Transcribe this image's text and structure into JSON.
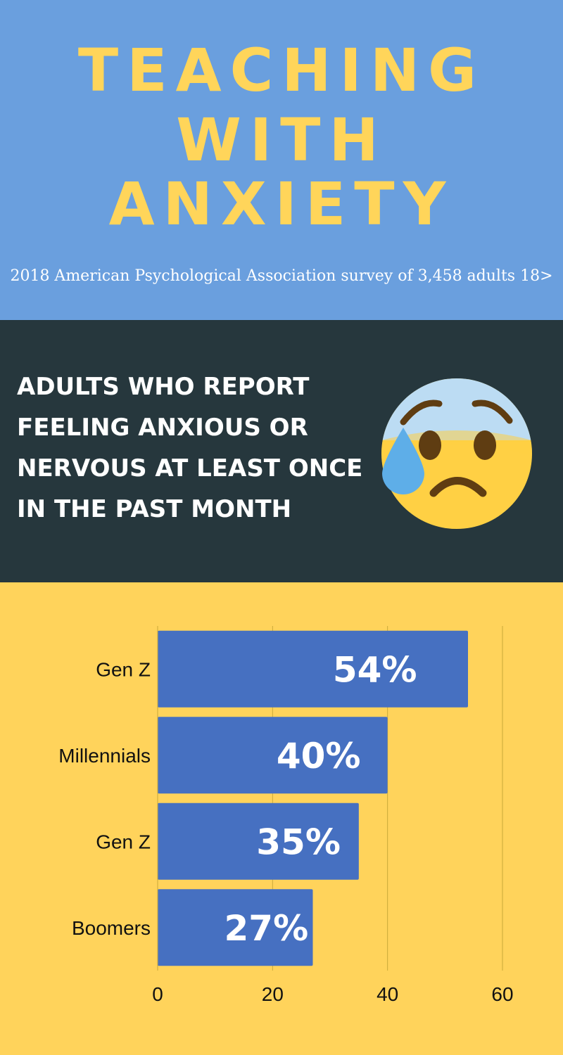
{
  "header": {
    "title_lines": [
      "TEACHING",
      "WITH",
      "ANXIETY"
    ],
    "subtitle": "2018 American Psychological Association survey of 3,458 adults 18>"
  },
  "question": {
    "lines": [
      "ADULTS WHO REPORT",
      "FEELING ANXIOUS OR",
      "NERVOUS AT LEAST ONCE",
      "IN THE PAST MONTH"
    ],
    "icon": "anxious-face-with-sweat-icon"
  },
  "colors": {
    "title_bg": "#6a9fde",
    "title_text": "#ffd55a",
    "head_bg": "#26373d",
    "chart_bg": "#ffd35b",
    "bar": "#4670c1",
    "grid": "#c9a93a"
  },
  "chart_data": {
    "type": "bar",
    "orientation": "horizontal",
    "categories": [
      "Gen Z",
      "Millennials",
      "Gen Z",
      "Boomers"
    ],
    "values": [
      54,
      40,
      35,
      27
    ],
    "data_labels": [
      "54%",
      "40%",
      "35%",
      "27%"
    ],
    "xlim": [
      0,
      60
    ],
    "xticks": [
      "0",
      "20",
      "40",
      "60"
    ],
    "grid": true,
    "title": "",
    "xlabel": "",
    "ylabel": ""
  }
}
